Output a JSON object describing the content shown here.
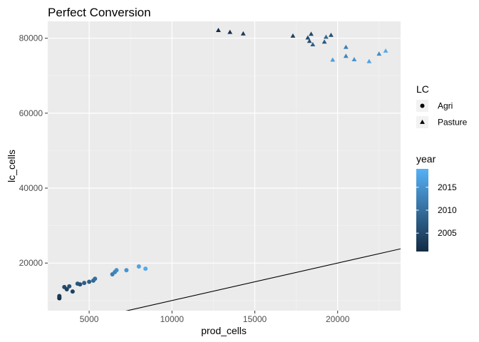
{
  "chart_data": {
    "type": "scatter",
    "title": "Perfect Conversion",
    "xlabel": "prod_cells",
    "ylabel": "lc_cells",
    "xlim": [
      2500,
      23800
    ],
    "ylim": [
      7300,
      84500
    ],
    "x_ticks": [
      5000,
      10000,
      15000,
      20000
    ],
    "x_tick_labels": [
      "5000",
      "10000",
      "15000",
      "20000"
    ],
    "y_ticks": [
      20000,
      40000,
      60000,
      80000
    ],
    "y_tick_labels": [
      "20000",
      "40000",
      "60000",
      "80000"
    ],
    "grid": true,
    "reference_line": {
      "slope": 1,
      "intercept": 0
    },
    "shape_legend": {
      "title": "LC",
      "entries": [
        {
          "label": "Agri",
          "shape": "circle"
        },
        {
          "label": "Pasture",
          "shape": "triangle"
        }
      ]
    },
    "color_legend": {
      "title": "year",
      "min": 2001,
      "max": 2019,
      "low_color": "#132B43",
      "high_color": "#56B1F7",
      "ticks": [
        2005,
        2010,
        2015
      ],
      "tick_labels": [
        "2005",
        "2010",
        "2015"
      ]
    },
    "series": [
      {
        "name": "Agri",
        "shape": "circle",
        "points": [
          {
            "x": 3200,
            "y": 10600,
            "year": 2001
          },
          {
            "x": 3200,
            "y": 10900,
            "year": 2002
          },
          {
            "x": 3200,
            "y": 11200,
            "year": 2003
          },
          {
            "x": 3500,
            "y": 13600,
            "year": 2005
          },
          {
            "x": 3650,
            "y": 13000,
            "year": 2004
          },
          {
            "x": 3800,
            "y": 13800,
            "year": 2006
          },
          {
            "x": 4000,
            "y": 12400,
            "year": 2004
          },
          {
            "x": 4300,
            "y": 14500,
            "year": 2007
          },
          {
            "x": 4450,
            "y": 14300,
            "year": 2006
          },
          {
            "x": 4700,
            "y": 14700,
            "year": 2008
          },
          {
            "x": 5000,
            "y": 15000,
            "year": 2008
          },
          {
            "x": 5250,
            "y": 15300,
            "year": 2009
          },
          {
            "x": 5350,
            "y": 15800,
            "year": 2010
          },
          {
            "x": 6400,
            "y": 17000,
            "year": 2012
          },
          {
            "x": 6550,
            "y": 17600,
            "year": 2013
          },
          {
            "x": 6650,
            "y": 18100,
            "year": 2014
          },
          {
            "x": 7250,
            "y": 18100,
            "year": 2015
          },
          {
            "x": 8000,
            "y": 19100,
            "year": 2017
          },
          {
            "x": 8400,
            "y": 18500,
            "year": 2018
          }
        ]
      },
      {
        "name": "Pasture",
        "shape": "triangle",
        "points": [
          {
            "x": 12800,
            "y": 82100,
            "year": 2001
          },
          {
            "x": 13500,
            "y": 81600,
            "year": 2002
          },
          {
            "x": 14300,
            "y": 81200,
            "year": 2003
          },
          {
            "x": 17300,
            "y": 80600,
            "year": 2004
          },
          {
            "x": 18200,
            "y": 80100,
            "year": 2005
          },
          {
            "x": 18300,
            "y": 79200,
            "year": 2006
          },
          {
            "x": 18400,
            "y": 81100,
            "year": 2005
          },
          {
            "x": 18500,
            "y": 78300,
            "year": 2008
          },
          {
            "x": 19200,
            "y": 79000,
            "year": 2007
          },
          {
            "x": 19300,
            "y": 80300,
            "year": 2009
          },
          {
            "x": 19600,
            "y": 80800,
            "year": 2006
          },
          {
            "x": 19700,
            "y": 74200,
            "year": 2016
          },
          {
            "x": 20500,
            "y": 77600,
            "year": 2012
          },
          {
            "x": 20500,
            "y": 75200,
            "year": 2013
          },
          {
            "x": 21000,
            "y": 74300,
            "year": 2015
          },
          {
            "x": 21900,
            "y": 73800,
            "year": 2017
          },
          {
            "x": 22500,
            "y": 75800,
            "year": 2014
          },
          {
            "x": 22900,
            "y": 76600,
            "year": 2018
          }
        ]
      }
    ]
  }
}
